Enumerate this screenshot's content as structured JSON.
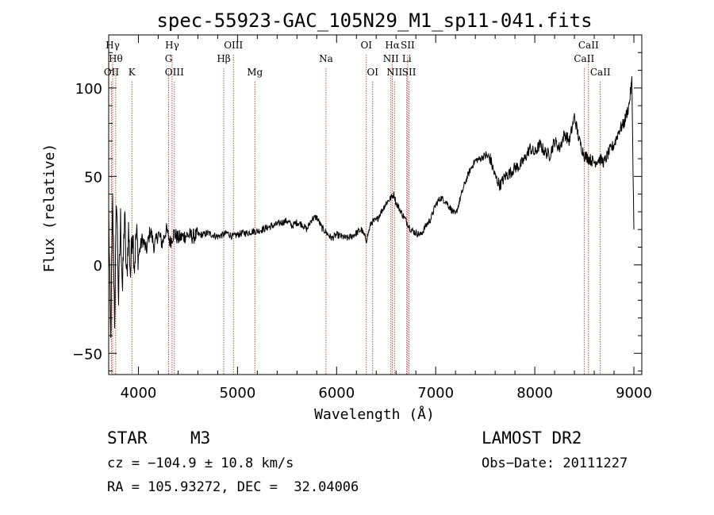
{
  "chart_data": {
    "type": "line",
    "title": "spec-55923-GAC_105N29_M1_sp11-041.fits",
    "xlabel": "Wavelength (Å)",
    "ylabel": "Flux (relative)",
    "xlim": [
      3700,
      9080
    ],
    "ylim": [
      -62,
      130
    ],
    "xticks": [
      4000,
      5000,
      6000,
      7000,
      8000,
      9000
    ],
    "yticks": [
      -50,
      0,
      50,
      100
    ],
    "series": [
      {
        "x": [
          3700,
          3720,
          3740,
          3760,
          3780,
          3800,
          3820,
          3840,
          3860,
          3880,
          3900,
          3920,
          3940,
          3960,
          3980,
          4000,
          4040,
          4080,
          4120,
          4160,
          4200,
          4240,
          4280,
          4320,
          4360,
          4400,
          4450,
          4500,
          4550,
          4600,
          4650,
          4700,
          4750,
          4800,
          4850,
          4900,
          4950,
          5000,
          5050,
          5100,
          5150,
          5200,
          5250,
          5300,
          5350,
          5400,
          5450,
          5500,
          5550,
          5600,
          5650,
          5700,
          5750,
          5800,
          5850,
          5900,
          5950,
          6000,
          6050,
          6100,
          6150,
          6200,
          6250,
          6300,
          6350,
          6400,
          6450,
          6500,
          6550,
          6580,
          6600,
          6650,
          6700,
          6750,
          6800,
          6850,
          6900,
          6950,
          7000,
          7050,
          7100,
          7150,
          7200,
          7250,
          7300,
          7350,
          7400,
          7450,
          7500,
          7550,
          7600,
          7650,
          7700,
          7750,
          7800,
          7850,
          7900,
          7950,
          8000,
          8050,
          8100,
          8150,
          8200,
          8250,
          8300,
          8350,
          8400,
          8450,
          8500,
          8550,
          8600,
          8650,
          8700,
          8750,
          8800,
          8850,
          8900,
          8950,
          8980,
          9000
        ],
        "y": [
          30,
          -45,
          35,
          -30,
          40,
          -20,
          25,
          -15,
          30,
          -10,
          20,
          -5,
          22,
          0,
          18,
          5,
          15,
          8,
          20,
          10,
          18,
          12,
          20,
          13,
          18,
          15,
          16,
          17,
          16,
          17,
          17,
          18,
          17,
          16,
          17,
          18,
          16,
          17,
          18,
          18,
          19,
          19,
          20,
          21,
          22,
          23,
          24,
          25,
          22,
          24,
          23,
          20,
          26,
          27,
          21,
          18,
          15,
          17,
          16,
          15,
          16,
          18,
          20,
          14,
          24,
          25,
          30,
          35,
          38,
          40,
          35,
          30,
          25,
          20,
          18,
          17,
          22,
          26,
          34,
          38,
          36,
          32,
          28,
          38,
          47,
          54,
          59,
          60,
          62,
          60,
          50,
          45,
          50,
          52,
          55,
          56,
          60,
          66,
          63,
          68,
          64,
          62,
          70,
          66,
          74,
          70,
          84,
          70,
          62,
          60,
          58,
          60,
          58,
          64,
          68,
          76,
          80,
          90,
          104,
          20
        ],
        "color": "#000000"
      }
    ],
    "emission_lines": [
      {
        "label": "Hγ",
        "x": 3740,
        "row": 0
      },
      {
        "label": "Hθ",
        "x": 3771,
        "row": 1
      },
      {
        "label": "OII",
        "x": 3728,
        "row": 2
      },
      {
        "label": "K",
        "x": 3934,
        "row": 2
      },
      {
        "label": "Hγ",
        "x": 4340,
        "row": 0
      },
      {
        "label": "G",
        "x": 4305,
        "row": 1
      },
      {
        "label": "OIII",
        "x": 4363,
        "row": 2
      },
      {
        "label": "OIII",
        "x": 4959,
        "row": 0
      },
      {
        "label": "Hβ",
        "x": 4861,
        "row": 1
      },
      {
        "label": "Mg",
        "x": 5175,
        "row": 2
      },
      {
        "label": "Na",
        "x": 5893,
        "row": 1
      },
      {
        "label": "OI",
        "x": 6300,
        "row": 0
      },
      {
        "label": "OI",
        "x": 6364,
        "row": 2
      },
      {
        "label": "Hα",
        "x": 6563,
        "row": 0
      },
      {
        "label": "NII",
        "x": 6548,
        "row": 1
      },
      {
        "label": "NII",
        "x": 6584,
        "row": 2
      },
      {
        "label": "SII",
        "x": 6717,
        "row": 0
      },
      {
        "label": "Li",
        "x": 6708,
        "row": 1
      },
      {
        "label": "SII",
        "x": 6731,
        "row": 2
      },
      {
        "label": "CaII",
        "x": 8542,
        "row": 0
      },
      {
        "label": "CaII",
        "x": 8498,
        "row": 1
      },
      {
        "label": "CaII",
        "x": 8662,
        "row": 2
      }
    ],
    "line_color": "#b22222"
  },
  "footer": {
    "class_label": "STAR",
    "subclass_label": "M3",
    "cz_text": "cz = −104.9 ± 10.8 km/s",
    "coords_text": "RA = 105.93272, DEC =  32.04006",
    "survey_text": "LAMOST DR2",
    "obsdate_text": "Obs−Date: 20111227"
  }
}
